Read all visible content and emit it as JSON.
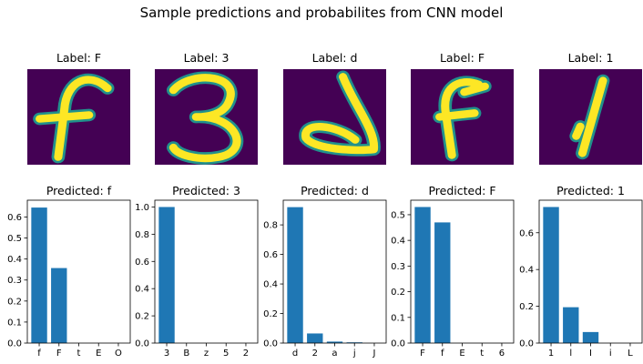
{
  "suptitle": "Sample predictions and probabilites from CNN model",
  "colors": {
    "bar": "#1f77b4",
    "image_background": "#440154",
    "stroke_dark": "#21918c",
    "stroke_bright": "#fde725"
  },
  "chart_data": [
    {
      "type": "bar",
      "image_title": "Label: F",
      "title": "Predicted: f",
      "categories": [
        "f",
        "F",
        "t",
        "E",
        "O"
      ],
      "values": [
        0.645,
        0.357,
        0.0,
        0.0,
        0.0
      ],
      "ylim": [
        0,
        0.68
      ],
      "yticks": [
        "0.0",
        "0.1",
        "0.2",
        "0.3",
        "0.4",
        "0.5",
        "0.6"
      ],
      "ytick_values": [
        0,
        0.1,
        0.2,
        0.3,
        0.4,
        0.5,
        0.6
      ],
      "grid": false,
      "legend": "none"
    },
    {
      "type": "bar",
      "image_title": "Label: 3",
      "title": "Predicted: 3",
      "categories": [
        "3",
        "B",
        "z",
        "5",
        "2"
      ],
      "values": [
        1.0,
        0.0,
        0.0,
        0.0,
        0.0
      ],
      "ylim": [
        0,
        1.05
      ],
      "yticks": [
        "0.0",
        "0.2",
        "0.4",
        "0.6",
        "0.8",
        "1.0"
      ],
      "ytick_values": [
        0,
        0.2,
        0.4,
        0.6,
        0.8,
        1.0
      ],
      "grid": false,
      "legend": "none"
    },
    {
      "type": "bar",
      "image_title": "Label: d",
      "title": "Predicted: d",
      "categories": [
        "d",
        "2",
        "a",
        "j",
        "J"
      ],
      "values": [
        0.92,
        0.065,
        0.01,
        0.005,
        0.0
      ],
      "ylim": [
        0,
        0.967
      ],
      "yticks": [
        "0.0",
        "0.2",
        "0.4",
        "0.6",
        "0.8"
      ],
      "ytick_values": [
        0,
        0.2,
        0.4,
        0.6,
        0.8
      ],
      "grid": false,
      "legend": "none"
    },
    {
      "type": "bar",
      "image_title": "Label: F",
      "title": "Predicted: F",
      "categories": [
        "F",
        "f",
        "E",
        "t",
        "6"
      ],
      "values": [
        0.53,
        0.47,
        0.0,
        0.0,
        0.0
      ],
      "ylim": [
        0,
        0.5565
      ],
      "yticks": [
        "0.0",
        "0.1",
        "0.2",
        "0.3",
        "0.4",
        "0.5"
      ],
      "ytick_values": [
        0,
        0.1,
        0.2,
        0.3,
        0.4,
        0.5
      ],
      "grid": false,
      "legend": "none"
    },
    {
      "type": "bar",
      "image_title": "Label: 1",
      "title": "Predicted: 1",
      "categories": [
        "1",
        "l",
        "I",
        "i",
        "L"
      ],
      "values": [
        0.74,
        0.195,
        0.06,
        0.0,
        0.0
      ],
      "ylim": [
        0,
        0.777
      ],
      "yticks": [
        "0.0",
        "0.2",
        "0.4",
        "0.6"
      ],
      "ytick_values": [
        0,
        0.2,
        0.4,
        0.6
      ],
      "grid": false,
      "legend": "none"
    }
  ]
}
